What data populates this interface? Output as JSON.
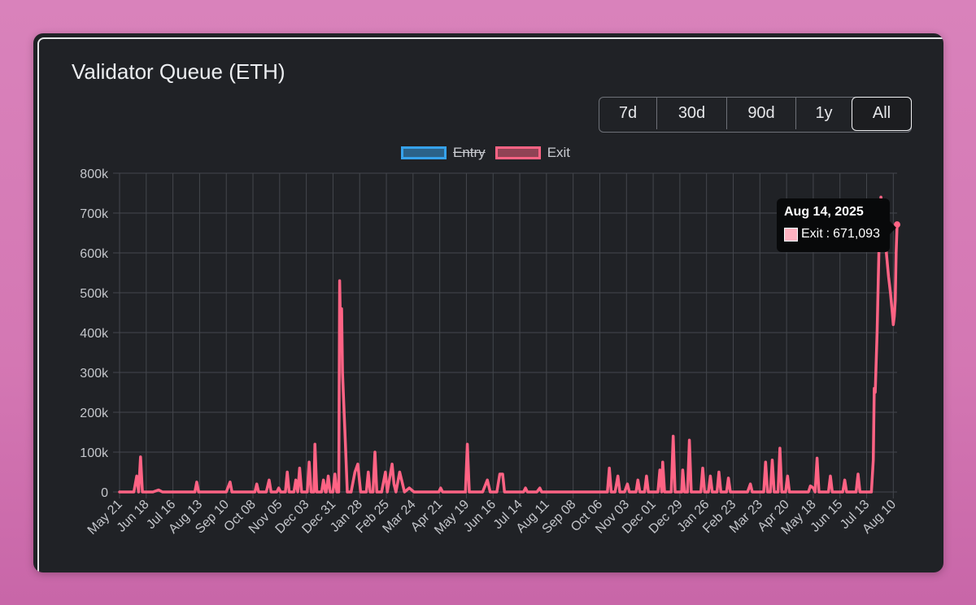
{
  "card": {
    "title": "Validator Queue (ETH)",
    "ranges": [
      "7d",
      "30d",
      "90d",
      "1y",
      "All"
    ],
    "active_range": "All"
  },
  "legend": [
    {
      "label": "Entry",
      "color": "#36a2eb",
      "hidden": true
    },
    {
      "label": "Exit",
      "color": "#ff6384",
      "hidden": false
    }
  ],
  "tooltip": {
    "title": "Aug 14, 2025",
    "series": "Exit",
    "value_text": "671,093"
  },
  "chart_data": {
    "type": "line",
    "title": "",
    "xlabel": "",
    "ylabel": "",
    "ylim": [
      0,
      800000
    ],
    "y_ticks": [
      "0",
      "100k",
      "200k",
      "300k",
      "400k",
      "500k",
      "600k",
      "700k",
      "800k"
    ],
    "x_ticks": [
      "May 21",
      "Jun 18",
      "Jul 16",
      "Aug 13",
      "Sep 10",
      "Oct 08",
      "Nov 05",
      "Dec 03",
      "Dec 31",
      "Jan 28",
      "Feb 25",
      "Mar 24",
      "Apr 21",
      "May 19",
      "Jun 16",
      "Jul 14",
      "Aug 11",
      "Sep 08",
      "Oct 06",
      "Nov 03",
      "Dec 01",
      "Dec 29",
      "Jan 26",
      "Feb 23",
      "Mar 23",
      "Apr 20",
      "May 18",
      "Jun 15",
      "Jul 13",
      "Aug 10"
    ],
    "x_tick_dates": [
      "2023-05-21",
      "2023-06-18",
      "2023-07-16",
      "2023-08-13",
      "2023-09-10",
      "2023-10-08",
      "2023-11-05",
      "2023-12-03",
      "2023-12-31",
      "2024-01-28",
      "2024-02-25",
      "2024-03-24",
      "2024-04-21",
      "2024-05-19",
      "2024-06-16",
      "2024-07-14",
      "2024-08-11",
      "2024-09-08",
      "2024-10-06",
      "2024-11-03",
      "2024-12-01",
      "2024-12-29",
      "2025-01-26",
      "2025-02-23",
      "2025-03-23",
      "2025-04-20",
      "2025-05-18",
      "2025-06-15",
      "2025-07-13",
      "2025-08-10"
    ],
    "grid": true,
    "legend_position": "top",
    "series": [
      {
        "name": "Exit",
        "color": "#ff6384",
        "points": [
          [
            "2023-05-21",
            0
          ],
          [
            "2023-06-05",
            0
          ],
          [
            "2023-06-08",
            40000
          ],
          [
            "2023-06-10",
            0
          ],
          [
            "2023-06-12",
            88000
          ],
          [
            "2023-06-14",
            0
          ],
          [
            "2023-06-25",
            0
          ],
          [
            "2023-07-01",
            5000
          ],
          [
            "2023-07-05",
            0
          ],
          [
            "2023-08-08",
            0
          ],
          [
            "2023-08-10",
            25000
          ],
          [
            "2023-08-12",
            0
          ],
          [
            "2023-09-10",
            0
          ],
          [
            "2023-09-14",
            25000
          ],
          [
            "2023-09-16",
            0
          ],
          [
            "2023-10-10",
            0
          ],
          [
            "2023-10-12",
            20000
          ],
          [
            "2023-10-14",
            0
          ],
          [
            "2023-10-22",
            0
          ],
          [
            "2023-10-25",
            30000
          ],
          [
            "2023-10-27",
            0
          ],
          [
            "2023-11-02",
            0
          ],
          [
            "2023-11-04",
            10000
          ],
          [
            "2023-11-06",
            0
          ],
          [
            "2023-11-11",
            0
          ],
          [
            "2023-11-13",
            50000
          ],
          [
            "2023-11-15",
            0
          ],
          [
            "2023-11-20",
            0
          ],
          [
            "2023-11-22",
            30000
          ],
          [
            "2023-11-24",
            0
          ],
          [
            "2023-11-26",
            60000
          ],
          [
            "2023-11-28",
            0
          ],
          [
            "2023-12-04",
            0
          ],
          [
            "2023-12-06",
            75000
          ],
          [
            "2023-12-08",
            0
          ],
          [
            "2023-12-11",
            0
          ],
          [
            "2023-12-12",
            120000
          ],
          [
            "2023-12-14",
            0
          ],
          [
            "2023-12-19",
            0
          ],
          [
            "2023-12-21",
            30000
          ],
          [
            "2023-12-23",
            0
          ],
          [
            "2023-12-24",
            0
          ],
          [
            "2023-12-26",
            40000
          ],
          [
            "2023-12-28",
            0
          ],
          [
            "2023-12-31",
            0
          ],
          [
            "2024-01-02",
            45000
          ],
          [
            "2024-01-04",
            0
          ],
          [
            "2024-01-06",
            0
          ],
          [
            "2024-01-07",
            530000
          ],
          [
            "2024-01-08",
            400000
          ],
          [
            "2024-01-09",
            460000
          ],
          [
            "2024-01-10",
            300000
          ],
          [
            "2024-01-13",
            120000
          ],
          [
            "2024-01-15",
            0
          ],
          [
            "2024-01-19",
            0
          ],
          [
            "2024-01-23",
            50000
          ],
          [
            "2024-01-26",
            70000
          ],
          [
            "2024-01-29",
            0
          ],
          [
            "2024-02-04",
            0
          ],
          [
            "2024-02-06",
            50000
          ],
          [
            "2024-02-08",
            0
          ],
          [
            "2024-02-11",
            0
          ],
          [
            "2024-02-13",
            100000
          ],
          [
            "2024-02-15",
            0
          ],
          [
            "2024-02-20",
            0
          ],
          [
            "2024-02-24",
            50000
          ],
          [
            "2024-02-26",
            0
          ],
          [
            "2024-03-02",
            70000
          ],
          [
            "2024-03-04",
            20000
          ],
          [
            "2024-03-06",
            0
          ],
          [
            "2024-03-10",
            50000
          ],
          [
            "2024-03-12",
            30000
          ],
          [
            "2024-03-15",
            0
          ],
          [
            "2024-03-20",
            10000
          ],
          [
            "2024-03-25",
            0
          ],
          [
            "2024-04-20",
            0
          ],
          [
            "2024-04-22",
            10000
          ],
          [
            "2024-04-24",
            0
          ],
          [
            "2024-05-18",
            0
          ],
          [
            "2024-05-20",
            120000
          ],
          [
            "2024-05-22",
            0
          ],
          [
            "2024-06-05",
            0
          ],
          [
            "2024-06-10",
            30000
          ],
          [
            "2024-06-13",
            0
          ],
          [
            "2024-06-20",
            0
          ],
          [
            "2024-06-23",
            45000
          ],
          [
            "2024-06-26",
            45000
          ],
          [
            "2024-06-28",
            0
          ],
          [
            "2024-07-18",
            0
          ],
          [
            "2024-07-20",
            10000
          ],
          [
            "2024-07-22",
            0
          ],
          [
            "2024-08-01",
            0
          ],
          [
            "2024-08-04",
            10000
          ],
          [
            "2024-08-06",
            0
          ],
          [
            "2024-10-14",
            0
          ],
          [
            "2024-10-16",
            60000
          ],
          [
            "2024-10-18",
            0
          ],
          [
            "2024-10-22",
            0
          ],
          [
            "2024-10-25",
            40000
          ],
          [
            "2024-10-27",
            0
          ],
          [
            "2024-11-01",
            0
          ],
          [
            "2024-11-04",
            20000
          ],
          [
            "2024-11-06",
            0
          ],
          [
            "2024-11-13",
            0
          ],
          [
            "2024-11-15",
            30000
          ],
          [
            "2024-11-17",
            0
          ],
          [
            "2024-11-22",
            0
          ],
          [
            "2024-11-24",
            40000
          ],
          [
            "2024-11-26",
            0
          ],
          [
            "2024-12-06",
            0
          ],
          [
            "2024-12-08",
            55000
          ],
          [
            "2024-12-10",
            0
          ],
          [
            "2024-12-11",
            75000
          ],
          [
            "2024-12-13",
            0
          ],
          [
            "2024-12-20",
            0
          ],
          [
            "2024-12-22",
            140000
          ],
          [
            "2024-12-24",
            0
          ],
          [
            "2024-12-31",
            0
          ],
          [
            "2025-01-01",
            55000
          ],
          [
            "2025-01-03",
            0
          ],
          [
            "2025-01-06",
            0
          ],
          [
            "2025-01-08",
            130000
          ],
          [
            "2025-01-10",
            0
          ],
          [
            "2025-01-20",
            0
          ],
          [
            "2025-01-22",
            60000
          ],
          [
            "2025-01-24",
            0
          ],
          [
            "2025-01-28",
            0
          ],
          [
            "2025-01-30",
            40000
          ],
          [
            "2025-02-01",
            0
          ],
          [
            "2025-02-06",
            0
          ],
          [
            "2025-02-08",
            50000
          ],
          [
            "2025-02-10",
            0
          ],
          [
            "2025-02-16",
            0
          ],
          [
            "2025-02-18",
            35000
          ],
          [
            "2025-02-20",
            0
          ],
          [
            "2025-03-10",
            0
          ],
          [
            "2025-03-13",
            20000
          ],
          [
            "2025-03-15",
            0
          ],
          [
            "2025-03-27",
            0
          ],
          [
            "2025-03-29",
            75000
          ],
          [
            "2025-03-31",
            0
          ],
          [
            "2025-04-03",
            0
          ],
          [
            "2025-04-05",
            80000
          ],
          [
            "2025-04-07",
            0
          ],
          [
            "2025-04-11",
            0
          ],
          [
            "2025-04-13",
            110000
          ],
          [
            "2025-04-15",
            0
          ],
          [
            "2025-04-19",
            0
          ],
          [
            "2025-04-21",
            40000
          ],
          [
            "2025-04-23",
            0
          ],
          [
            "2025-05-13",
            0
          ],
          [
            "2025-05-15",
            15000
          ],
          [
            "2025-05-18",
            10000
          ],
          [
            "2025-05-20",
            0
          ],
          [
            "2025-05-22",
            85000
          ],
          [
            "2025-05-24",
            0
          ],
          [
            "2025-06-03",
            0
          ],
          [
            "2025-06-05",
            40000
          ],
          [
            "2025-06-07",
            0
          ],
          [
            "2025-06-18",
            0
          ],
          [
            "2025-06-20",
            30000
          ],
          [
            "2025-06-22",
            0
          ],
          [
            "2025-07-02",
            0
          ],
          [
            "2025-07-04",
            45000
          ],
          [
            "2025-07-06",
            0
          ],
          [
            "2025-07-18",
            0
          ],
          [
            "2025-07-20",
            80000
          ],
          [
            "2025-07-21",
            260000
          ],
          [
            "2025-07-22",
            250000
          ],
          [
            "2025-07-24",
            400000
          ],
          [
            "2025-07-26",
            610000
          ],
          [
            "2025-07-28",
            740000
          ],
          [
            "2025-07-30",
            680000
          ],
          [
            "2025-08-02",
            620000
          ],
          [
            "2025-08-05",
            540000
          ],
          [
            "2025-08-07",
            500000
          ],
          [
            "2025-08-09",
            450000
          ],
          [
            "2025-08-10",
            420000
          ],
          [
            "2025-08-11",
            440000
          ],
          [
            "2025-08-12",
            480000
          ],
          [
            "2025-08-13",
            600000
          ],
          [
            "2025-08-14",
            671093
          ]
        ]
      }
    ]
  }
}
